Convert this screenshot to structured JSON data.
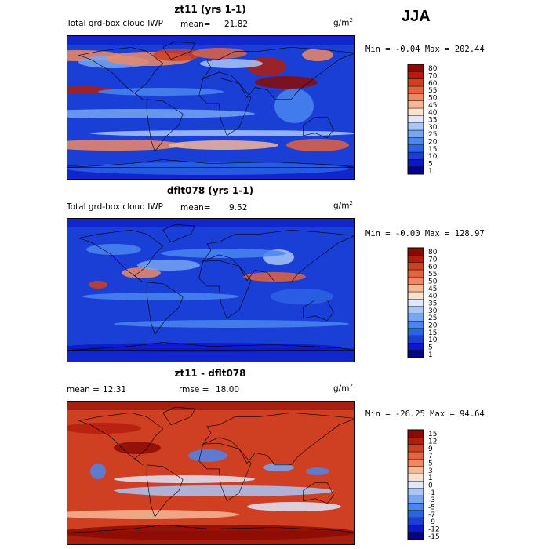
{
  "season_label": "JJA",
  "colors": {
    "ocean_base": "#1a3fd6",
    "coast": "#000000"
  },
  "panels": [
    {
      "title": "zt11 (yrs 1-1)",
      "variable": "Total grd-box cloud IWP",
      "stat_label": "mean=",
      "stat_value": "21.82",
      "units_base": "g/m",
      "units_exp": "2",
      "range_text": "Min =  -0.04 Max = 202.44"
    },
    {
      "title": "dflt078 (yrs 1-1)",
      "variable": "Total grd-box cloud IWP",
      "stat_label": "mean=",
      "stat_value": "9.52",
      "units_base": "g/m",
      "units_exp": "2",
      "range_text": "Min =  -0.00 Max = 128.97"
    },
    {
      "title": "zt11 - dflt078",
      "stat_label": "mean =",
      "stat_value": "12.31",
      "rmse_label": "rmse =",
      "rmse_value": "18.00",
      "units_base": "g/m",
      "units_exp": "2",
      "range_text": "Min = -26.25 Max =  94.64"
    }
  ],
  "chart_data": [
    {
      "type": "heatmap",
      "title": "zt11 (yrs 1-1)",
      "subtitle": "Total grd-box cloud IWP",
      "mean": 21.82,
      "min": -0.04,
      "max": 202.44,
      "units": "g/m2",
      "colorbar": {
        "levels": [
          "1",
          "5",
          "10",
          "15",
          "20",
          "25",
          "30",
          "35",
          "40",
          "45",
          "50",
          "55",
          "60",
          "70",
          "80"
        ],
        "colors": [
          "#06038a",
          "#0d16c8",
          "#1a3fd6",
          "#2c63e6",
          "#4a86ee",
          "#77a6f2",
          "#a9c7f6",
          "#dfe8fa",
          "#fbe1cc",
          "#f6b796",
          "#ee8a63",
          "#e2633f",
          "#cf3f22",
          "#b41d0c",
          "#8b0a04"
        ]
      }
    },
    {
      "type": "heatmap",
      "title": "dflt078 (yrs 1-1)",
      "subtitle": "Total grd-box cloud IWP",
      "mean": 9.52,
      "min": -0.0,
      "max": 128.97,
      "units": "g/m2",
      "colorbar": {
        "levels": [
          "1",
          "5",
          "10",
          "15",
          "20",
          "25",
          "30",
          "35",
          "40",
          "45",
          "50",
          "55",
          "60",
          "70",
          "80"
        ],
        "colors": [
          "#06038a",
          "#0d16c8",
          "#1a3fd6",
          "#2c63e6",
          "#4a86ee",
          "#77a6f2",
          "#a9c7f6",
          "#dfe8fa",
          "#fbe1cc",
          "#f6b796",
          "#ee8a63",
          "#e2633f",
          "#cf3f22",
          "#b41d0c",
          "#8b0a04"
        ]
      }
    },
    {
      "type": "heatmap",
      "title": "zt11 - dflt078",
      "mean": 12.31,
      "rmse": 18.0,
      "min": -26.25,
      "max": 94.64,
      "units": "g/m2",
      "colorbar": {
        "levels": [
          "-15",
          "-12",
          "-9",
          "-7",
          "-5",
          "-3",
          "-1",
          "0",
          "1",
          "3",
          "5",
          "7",
          "9",
          "12",
          "15"
        ],
        "colors": [
          "#06038a",
          "#0d16c8",
          "#1a3fd6",
          "#2c63e6",
          "#4a86ee",
          "#77a6f2",
          "#a9c7f6",
          "#dfe8fa",
          "#fbe1cc",
          "#f6b796",
          "#ee8a63",
          "#e2633f",
          "#cf3f22",
          "#b41d0c",
          "#8b0a04"
        ]
      }
    }
  ]
}
